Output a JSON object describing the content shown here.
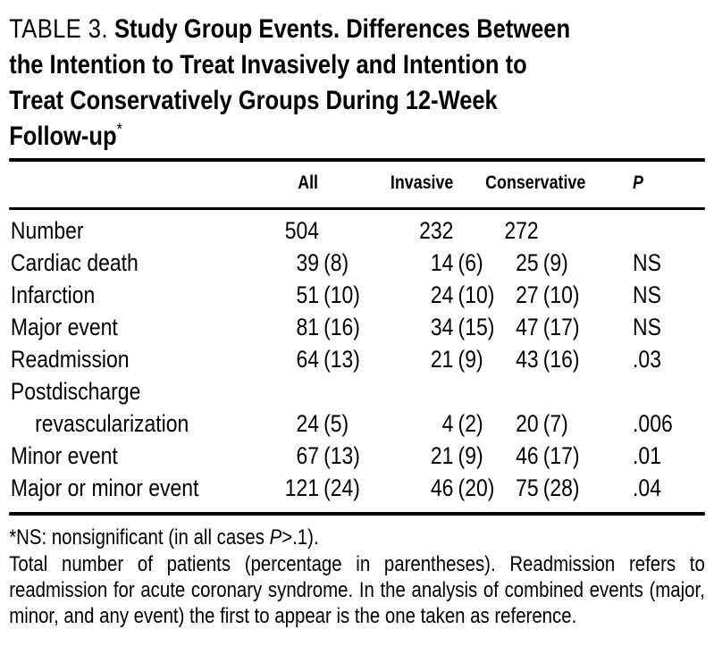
{
  "title": {
    "label": "TABLE 3.",
    "line1": "Study Group Events. Differences Between",
    "line2": "the Intention to Treat Invasively and Intention to",
    "line3": "Treat Conservatively Groups During 12-Week",
    "line4": "Follow-up",
    "footnote_marker": "*"
  },
  "table": {
    "columns": [
      "All",
      "Invasive",
      "Conservative",
      "P"
    ],
    "rows": [
      {
        "label": "Number",
        "all_n": "504",
        "all_pct": "",
        "inv_n": "232",
        "inv_pct": "",
        "con_n": "272",
        "con_pct": "",
        "p": ""
      },
      {
        "label": "Cardiac death",
        "all_n": "39",
        "all_pct": "(8)",
        "inv_n": "14",
        "inv_pct": "(6)",
        "con_n": "25",
        "con_pct": "(9)",
        "p": "NS"
      },
      {
        "label": "Infarction",
        "all_n": "51",
        "all_pct": "(10)",
        "inv_n": "24",
        "inv_pct": "(10)",
        "con_n": "27",
        "con_pct": "(10)",
        "p": "NS"
      },
      {
        "label": "Major event",
        "all_n": "81",
        "all_pct": "(16)",
        "inv_n": "34",
        "inv_pct": "(15)",
        "con_n": "47",
        "con_pct": "(17)",
        "p": "NS"
      },
      {
        "label": "Readmission",
        "all_n": "64",
        "all_pct": "(13)",
        "inv_n": "21",
        "inv_pct": "(9)",
        "con_n": "43",
        "con_pct": "(16)",
        "p": ".03"
      },
      {
        "label": "Postdischarge",
        "all_n": "",
        "all_pct": "",
        "inv_n": "",
        "inv_pct": "",
        "con_n": "",
        "con_pct": "",
        "p": ""
      },
      {
        "label": "revascularization",
        "all_n": "24",
        "all_pct": "(5)",
        "inv_n": "4",
        "inv_pct": "(2)",
        "con_n": "20",
        "con_pct": "(7)",
        "p": ".006"
      },
      {
        "label": "Minor event",
        "all_n": "67",
        "all_pct": "(13)",
        "inv_n": "21",
        "inv_pct": "(9)",
        "con_n": "46",
        "con_pct": "(17)",
        "p": ".01"
      },
      {
        "label": "Major or minor event",
        "all_n": "121",
        "all_pct": "(24)",
        "inv_n": "46",
        "inv_pct": "(20)",
        "con_n": "75",
        "con_pct": "(28)",
        "p": ".04"
      }
    ]
  },
  "footnotes": {
    "first_pre": "*NS: nonsignificant (in all cases ",
    "first_italic": "P",
    "first_post": ">.1).",
    "second": "Total number of patients (percentage in parentheses). Readmission refers to readmission for acute coronary syndrome. In the analysis of combined events (major, minor, and any event) the first to appear is the one taken as reference."
  },
  "colors": {
    "text": "#000000",
    "background": "#ffffff",
    "rule": "#000000"
  }
}
